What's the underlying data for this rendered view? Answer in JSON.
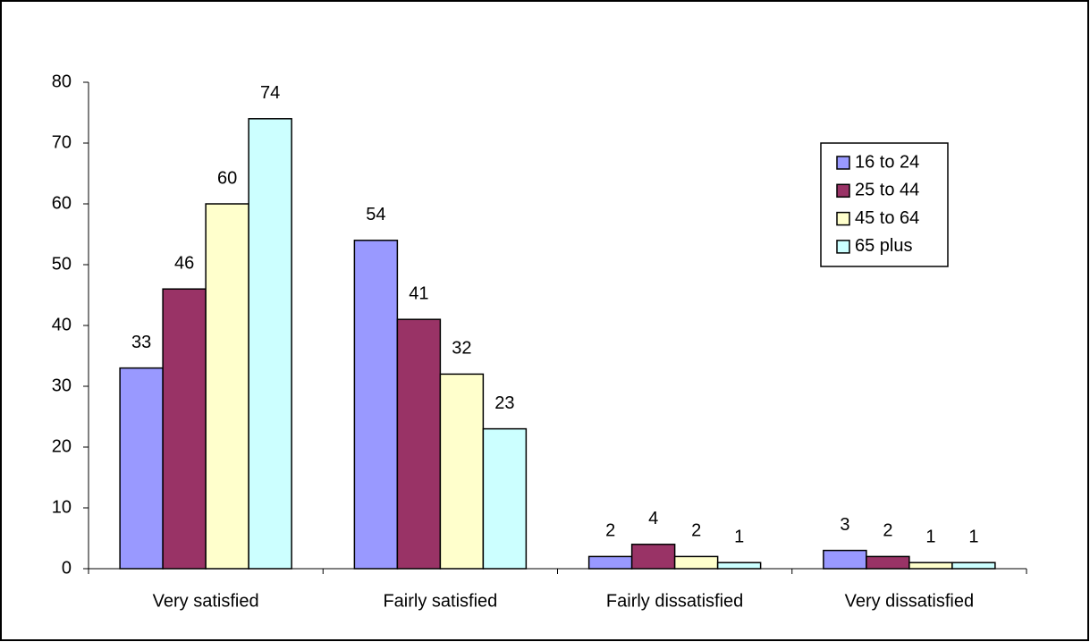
{
  "chart_data": {
    "type": "bar",
    "categories": [
      "Very satisfied",
      "Fairly satisfied",
      "Fairly dissatisfied",
      "Very dissatisfied"
    ],
    "series": [
      {
        "name": "16 to 24",
        "color": "#9999ff",
        "values": [
          33,
          54,
          2,
          3
        ]
      },
      {
        "name": "25 to 44",
        "color": "#993366",
        "values": [
          46,
          41,
          4,
          2
        ]
      },
      {
        "name": "45 to 64",
        "color": "#ffffcc",
        "values": [
          60,
          32,
          2,
          1
        ]
      },
      {
        "name": "65 plus",
        "color": "#ccffff",
        "values": [
          74,
          23,
          1,
          1
        ]
      }
    ],
    "ylim": [
      0,
      80
    ],
    "yticks": [
      0,
      10,
      20,
      30,
      40,
      50,
      60,
      70,
      80
    ],
    "legend": "right",
    "grid": false
  }
}
